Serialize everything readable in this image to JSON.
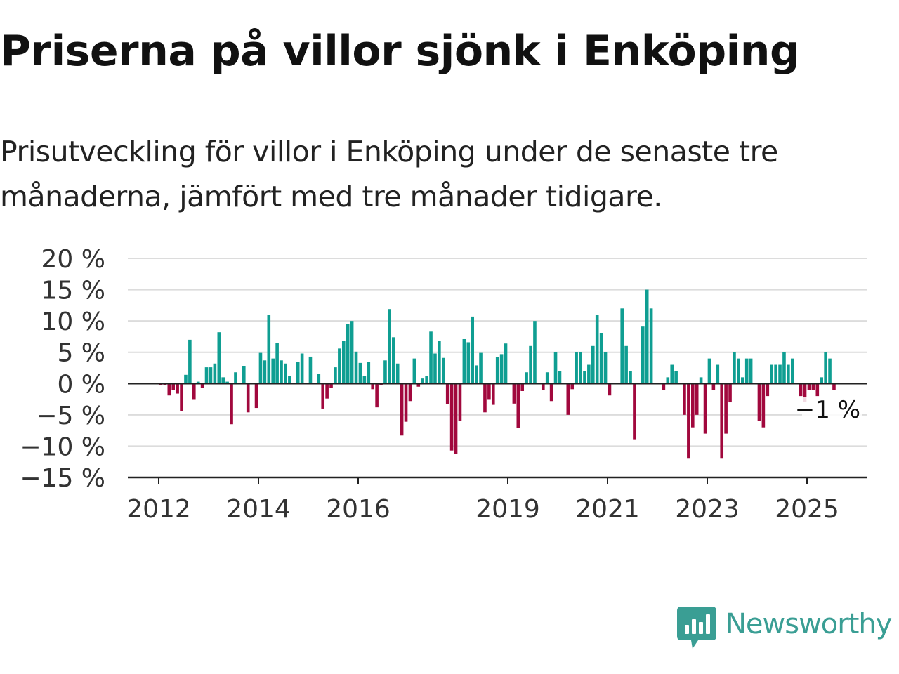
{
  "header": {
    "title": "Priserna på villor sjönk i Enköping",
    "subtitle": "Prisutveckling för villor i Enköping under de senaste tre månaderna, jämfört med tre månader tidigare."
  },
  "brand": {
    "name": "Newsworthy",
    "color": "#3a9e94",
    "icon": "newsworthy-logo-icon"
  },
  "colors": {
    "positive": "#0f9e92",
    "negative": "#a1083d",
    "grid": "#dcdcdc",
    "axis": "#222222",
    "text": "#333333"
  },
  "chart_data": {
    "type": "bar",
    "title": "",
    "xlabel": "",
    "ylabel": "",
    "ylim": [
      -15,
      20
    ],
    "yticks": [
      20,
      15,
      10,
      5,
      0,
      -5,
      -10,
      -15
    ],
    "ytick_labels": [
      "20 %",
      "15 %",
      "10 %",
      "5 %",
      "0 %",
      "−5 %",
      "−10 %",
      "−15 %"
    ],
    "xtick_years": [
      2012,
      2014,
      2016,
      2019,
      2021,
      2023,
      2025
    ],
    "xtick_labels": [
      "2012",
      "2014",
      "2016",
      "2019",
      "2021",
      "2023",
      "2025"
    ],
    "grid": true,
    "last_value_label": "−1 %",
    "series": [
      {
        "start_year": 2012,
        "start_month": 1,
        "frequency": "monthly",
        "values": [
          -0.3,
          -0.3,
          -1.9,
          -1.0,
          -1.6,
          -4.4,
          1.4,
          7.0,
          -2.6,
          0.3,
          -0.7,
          2.6,
          2.6,
          3.2,
          8.2,
          1.0,
          0.3,
          -6.5,
          1.8,
          0.0,
          2.8,
          -4.6,
          0.0,
          -3.9,
          4.9,
          3.7,
          11.0,
          4.0,
          6.5,
          3.7,
          3.2,
          1.2,
          0.0,
          3.5,
          4.8,
          0.0,
          4.3,
          0.0,
          1.6,
          -4.0,
          -2.4,
          -0.7,
          2.6,
          5.6,
          6.8,
          9.5,
          10.0,
          5.1,
          3.3,
          1.2,
          3.5,
          -0.9,
          -3.8,
          -0.3,
          3.7,
          11.9,
          7.4,
          3.2,
          -8.3,
          -6.1,
          -2.8,
          4.0,
          -0.5,
          0.8,
          1.2,
          8.3,
          4.8,
          6.8,
          4.1,
          -3.3,
          -10.7,
          -11.2,
          -6.0,
          7.1,
          6.6,
          10.7,
          2.9,
          4.9,
          -4.6,
          -2.6,
          -3.4,
          4.2,
          4.7,
          6.4,
          0.0,
          -3.2,
          -7.1,
          -1.2,
          1.8,
          6.0,
          10.0,
          0.0,
          -1.0,
          1.8,
          -2.8,
          5.0,
          2.0,
          0.0,
          -5.0,
          -0.9,
          5.0,
          5.0,
          2.0,
          3.0,
          6.0,
          11.0,
          8.0,
          5.0,
          -1.9,
          0.0,
          0.0,
          12.0,
          6.0,
          2.0,
          -8.9,
          0.0,
          9.1,
          15.0,
          12.0,
          0.0,
          0.0,
          -1.0,
          1.0,
          3.0,
          2.0,
          0.0,
          -5.0,
          -12.0,
          -7.0,
          -5.0,
          1.0,
          -8.0,
          4.0,
          -1.0,
          3.0,
          -12.0,
          -8.0,
          -3.0,
          5.0,
          4.0,
          1.0,
          4.0,
          4.0,
          0.0,
          -6.0,
          -7.0,
          -2.0,
          3.0,
          3.0,
          3.0,
          5.0,
          3.0,
          4.0,
          0.0,
          -2.0,
          -3.0,
          -1.0,
          -1.0,
          -2.0,
          1.0,
          5.0,
          4.0,
          -1.0
        ]
      }
    ]
  }
}
